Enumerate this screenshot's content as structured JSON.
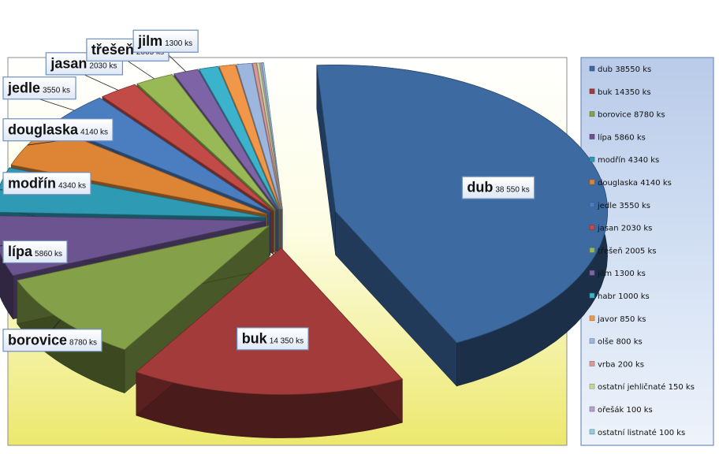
{
  "chart_data": {
    "type": "pie",
    "title": "",
    "legend_position": "right",
    "unit": "ks",
    "slices": [
      {
        "name": "dub",
        "value": 38550,
        "color": "#3d6aa1",
        "legend": "dub 38550 ks",
        "label": "38 550 ks",
        "labeled": true
      },
      {
        "name": "buk",
        "value": 14350,
        "color": "#a33b3a",
        "legend": "buk 14350 ks",
        "label": "14 350 ks",
        "labeled": true
      },
      {
        "name": "borovice",
        "value": 8780,
        "color": "#84a048",
        "legend": "borovice 8780 ks",
        "label": "8780 ks",
        "labeled": true
      },
      {
        "name": "lípa",
        "value": 5860,
        "color": "#6b5490",
        "legend": "lípa 5860 ks",
        "label": "5860 ks",
        "labeled": true
      },
      {
        "name": "modřín",
        "value": 4340,
        "color": "#2f9ab4",
        "legend": "modřín 4340 ks",
        "label": "4340 ks",
        "labeled": true
      },
      {
        "name": "douglaska",
        "value": 4140,
        "color": "#de8535",
        "legend": "douglaska 4140 ks",
        "label": "4140 ks",
        "labeled": true
      },
      {
        "name": "jedle",
        "value": 3550,
        "color": "#4a7ec0",
        "legend": "jedle 3550 ks",
        "label": "3550 ks",
        "labeled": true
      },
      {
        "name": "jasan",
        "value": 2030,
        "color": "#c24b47",
        "legend": "jasan 2030 ks",
        "label": "2030 ks",
        "labeled": true
      },
      {
        "name": "třešeň",
        "value": 2005,
        "color": "#98b955",
        "legend": "třešeň 2005 ks",
        "label": "2005 ks",
        "labeled": true
      },
      {
        "name": "jilm",
        "value": 1300,
        "color": "#7e64a6",
        "legend": "jilm 1300 ks",
        "label": "1300 ks",
        "labeled": true
      },
      {
        "name": "habr",
        "value": 1000,
        "color": "#3cb3cc",
        "legend": "habr 1000 ks",
        "label": "",
        "labeled": false
      },
      {
        "name": "javor",
        "value": 850,
        "color": "#f1974a",
        "legend": "javor 850 ks",
        "label": "",
        "labeled": false
      },
      {
        "name": "olše",
        "value": 800,
        "color": "#9db6dd",
        "legend": "olše 800 ks",
        "label": "",
        "labeled": false
      },
      {
        "name": "vrba",
        "value": 200,
        "color": "#d99998",
        "legend": "vrba 200 ks",
        "label": "",
        "labeled": false
      },
      {
        "name": "ostatní jehličnaté",
        "value": 150,
        "color": "#c3d69b",
        "legend": "ostatní jehličnaté 150 ks",
        "label": "",
        "labeled": false
      },
      {
        "name": "ořešák",
        "value": 100,
        "color": "#b2a2c7",
        "legend": "ořešák 100 ks",
        "label": "",
        "labeled": false
      },
      {
        "name": "ostatní listnaté",
        "value": 100,
        "color": "#93cddd",
        "legend": "ostatní listnaté 100 ks",
        "label": "",
        "labeled": false
      }
    ]
  }
}
